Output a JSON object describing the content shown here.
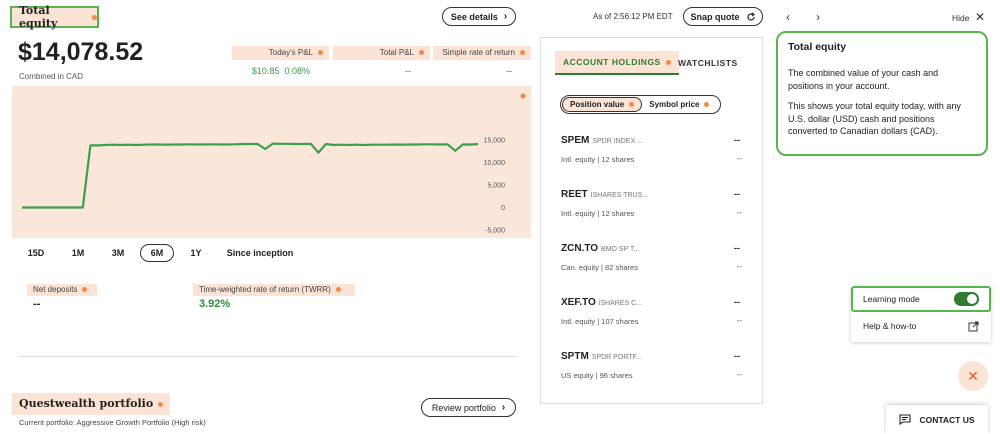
{
  "header": {
    "title": "Total equity",
    "see_details": "See details",
    "as_of": "As of 2:56:12 PM EDT",
    "snap_quote": "Snap quote"
  },
  "summary": {
    "amount": "$14,078.52",
    "amount_sub": "Combined in CAD",
    "todays_pl_label": "Today's P&L",
    "todays_pl_value": "$10.85",
    "todays_pl_pct": "0.08%",
    "total_pl_label": "Total P&L",
    "total_pl_value": "--",
    "simple_rate_label": "Simple rate of return",
    "simple_rate_value": "--"
  },
  "chart_data": {
    "type": "line",
    "y_ticks": [
      "15,000",
      "10,000",
      "5,000",
      "0",
      "-5,000"
    ],
    "ylim": [
      -5000,
      15000
    ],
    "grid": false,
    "series": [
      {
        "color": "#3aa14a",
        "values": [
          0,
          0,
          0,
          0,
          0,
          0,
          0,
          0,
          0,
          13800,
          13800,
          13900,
          13950,
          13900,
          13950,
          13900,
          13950,
          14000,
          14000,
          13950,
          14000,
          14000,
          14050,
          14000,
          14000,
          14050,
          14000,
          14000,
          14050,
          14100,
          14100,
          14100,
          13000,
          14200,
          14150,
          14150,
          14100,
          14100,
          14150,
          12200,
          14100,
          13900,
          13950,
          13900,
          13950,
          13900,
          13950,
          13950,
          13950,
          14000,
          13950,
          14000,
          14000,
          14050,
          14050,
          14000,
          14050,
          12600,
          14000,
          14000,
          14078.52
        ]
      }
    ]
  },
  "ranges": [
    "15D",
    "1M",
    "3M",
    "6M",
    "1Y",
    "Since inception"
  ],
  "selected_range": "6M",
  "metrics": {
    "net_deposits_label": "Net deposits",
    "net_deposits_value": "--",
    "twrr_label": "Time-weighted rate of return (TWRR)",
    "twrr_value": "3.92%"
  },
  "portfolio": {
    "title": "Questwealth portfolio",
    "subtitle": "Current portfolio: Aggressive Growth Portfolio (High risk)",
    "review": "Review portfolio"
  },
  "holdings": {
    "tab_holdings": "ACCOUNT HOLDINGS",
    "tab_watchlists": "WATCHLISTS",
    "seg_position": "Position value",
    "seg_symbol": "Symbol price",
    "items": [
      {
        "symbol": "SPEM",
        "name": "SPDR INDEX ...",
        "detail": "Intl. equity | 12 shares",
        "value": "--",
        "change": "--"
      },
      {
        "symbol": "REET",
        "name": "ISHARES TRUS...",
        "detail": "Intl. equity | 12 shares",
        "value": "--",
        "change": "--"
      },
      {
        "symbol": "ZCN.TO",
        "name": "BMO SP T...",
        "detail": "Can. equity | 82 shares",
        "value": "--",
        "change": "--"
      },
      {
        "symbol": "XEF.TO",
        "name": "iSHARES C...",
        "detail": "Intl. equity | 107 shares",
        "value": "--",
        "change": "--"
      },
      {
        "symbol": "SPTM",
        "name": "SPDR PORTF...",
        "detail": "US equity | 96 shares",
        "value": "--",
        "change": "--"
      }
    ]
  },
  "learn": {
    "hide": "Hide",
    "title": "Total equity",
    "p1": "The combined value of your cash and positions in your account.",
    "p2": "This shows your total equity today, with any U.S. dollar (USD) cash and positions converted to Canadian dollars (CAD).",
    "learning_mode": "Learning mode",
    "help": "Help & how-to",
    "contact": "CONTACT US"
  },
  "colors": {
    "accent_green": "#56b54c",
    "peach": "#fbe3d6",
    "dot_orange": "#f08a4b"
  }
}
